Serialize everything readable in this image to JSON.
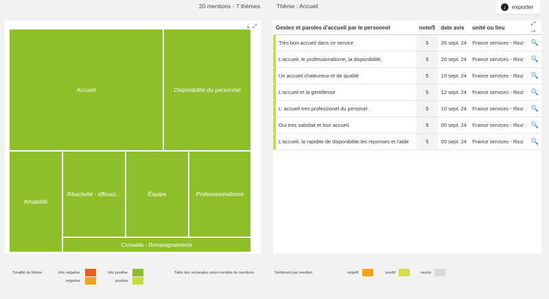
{
  "header": {
    "mentions_summary": "20 mentions - 7 thèmes",
    "theme_label": "Thème : Accueil",
    "export_label": "exporter"
  },
  "treemap": {
    "tiles": [
      {
        "label": "Accueil",
        "color": "#8dbf2a"
      },
      {
        "label": "Disponibilité du personnel",
        "color": "#8dbf2a"
      },
      {
        "label": "Amabilité",
        "color": "#8dbf2a"
      },
      {
        "label": "Réactivité - efficaci...",
        "color": "#8dbf2a"
      },
      {
        "label": "Équipe",
        "color": "#8dbf2a"
      },
      {
        "label": "Professionnalisme",
        "color": "#8dbf2a"
      },
      {
        "label": "Conseils - Renseignements",
        "color": "#8dbf2a"
      }
    ]
  },
  "table": {
    "columns": [
      "Gestes et paroles d'accueil par le personnel",
      "note/5",
      "date avis",
      "unité ou lieu"
    ],
    "rows": [
      {
        "text": "Très bon accueil dans ce service",
        "note": "5",
        "date": "26 sept. 24",
        "unit": "France services - Rioz"
      },
      {
        "text": "L'accueil, le professionalisme, la disponibilité.",
        "note": "5",
        "date": "20 sept. 24",
        "unit": "France services - Rioz"
      },
      {
        "text": "Un accueil chaleureux et de qualité",
        "note": "5",
        "date": "19 sept. 24",
        "unit": "France services - Rioz"
      },
      {
        "text": "L'accueil et la gentillesse",
        "note": "5",
        "date": "12 sept. 24",
        "unit": "France services - Rioz"
      },
      {
        "text": "L' accueil tres professionel du personel .",
        "note": "5",
        "date": "10 sept. 24",
        "unit": "France services - Rioz"
      },
      {
        "text": "Oui tres satisfait et bon accueil.",
        "note": "5",
        "date": "05 sept. 24",
        "unit": "France services - Rioz"
      },
      {
        "text": "L'accueil, la rapidite de disponibilite,les reponses et l'aide",
        "note": "5",
        "date": "05 sept. 24",
        "unit": "France services - Rioz"
      }
    ]
  },
  "legend": {
    "tonalite_title": "Tonalité du thème",
    "tres_negative": "très négative",
    "negative": "négative",
    "tres_positive": "très positive",
    "positive": "positive",
    "taille_note": "Taille des rectangles selon nombre de mentions",
    "sentiment_title": "Sentiment par mention",
    "negatif": "négatif",
    "positif": "positif",
    "neutre": "neutre",
    "colors": {
      "tres_negative": "#f15a22",
      "negative": "#f7a21b",
      "tres_positive": "#8dbf2a",
      "positive": "#c8dc3c",
      "negatif": "#f7a21b",
      "positif": "#cfe04a",
      "neutre": "#d9d9d9"
    }
  }
}
